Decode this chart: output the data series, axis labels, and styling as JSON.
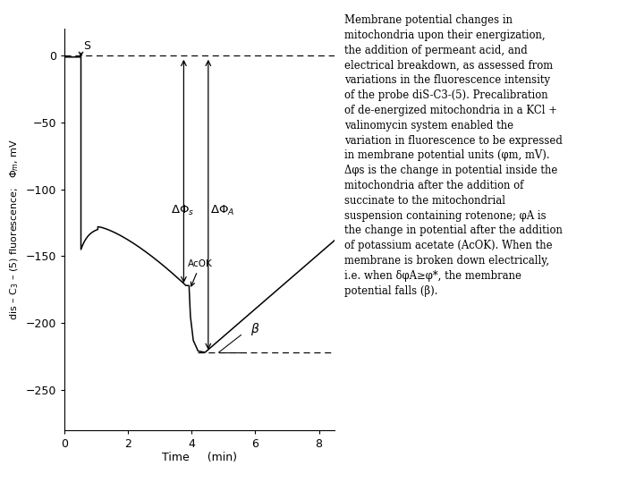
{
  "xlim": [
    0,
    8.5
  ],
  "ylim": [
    -280,
    20
  ],
  "yticks": [
    0,
    -50,
    -100,
    -150,
    -200,
    -250
  ],
  "xticks": [
    0,
    2,
    4,
    6,
    8
  ],
  "xlabel_parts": [
    "Time",
    "(min)"
  ],
  "background_color": "#ffffff",
  "line_color": "#000000",
  "text_color": "#000000",
  "fig_width": 7.2,
  "fig_height": 5.4,
  "dashed_bottom_y": -222,
  "caption_lines": [
    "Membrane potential changes in",
    "mitochondria upon their energization,",
    "the addition of permeant acid, and",
    "electrical breakdown, as assessed from",
    "variations in the fluorescence intensity",
    "of the probe diS-C3-(5). Precalibration",
    "of de-energized mitochondria in a KCl +",
    "valinomycin system enabled the",
    "variation in fluorescence to be expressed",
    "in membrane potential units (φm, mV).",
    "Δφs is the change in potential inside the",
    "mitochondria after the addition of",
    "succinate to the mitochondrial",
    "suspension containing rotenone; φA is",
    "the change in potential after the addition",
    "of potassium acetate (AcOK). When the",
    "membrane is broken down electrically,",
    "i.e. when δφA≥φ*, the membrane",
    "potential falls (β)."
  ]
}
